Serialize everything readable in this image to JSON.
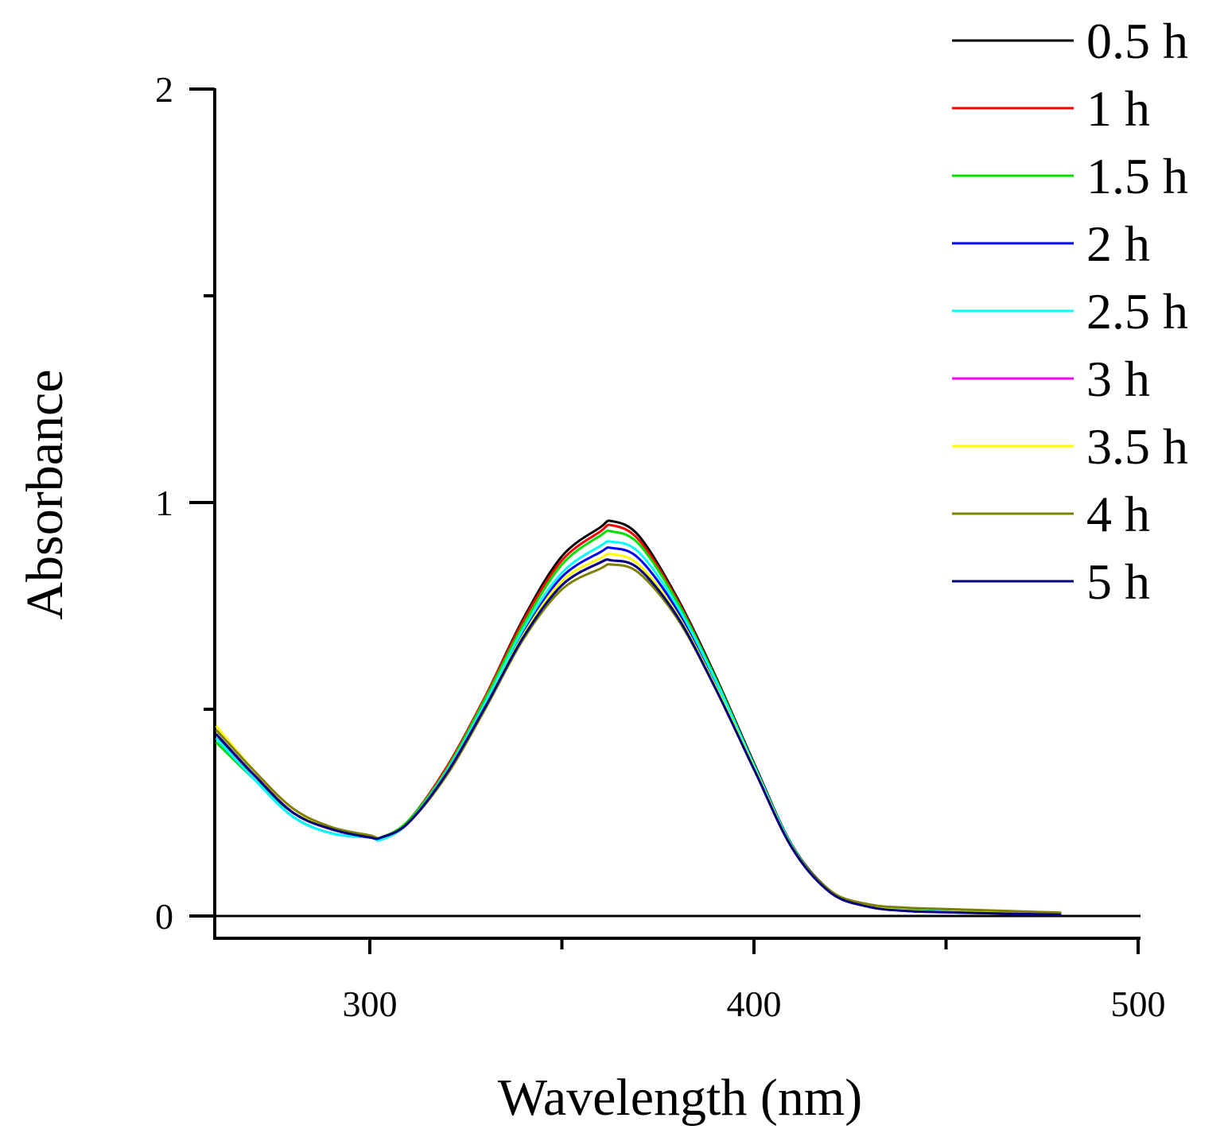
{
  "chart_data": {
    "type": "line",
    "title": "",
    "xlabel": "Wavelength (nm)",
    "ylabel": "Absorbance",
    "xlim": [
      260,
      500
    ],
    "ylim": [
      -0.05,
      2.0
    ],
    "x_major_ticks": [
      300,
      400,
      500
    ],
    "x_minor_ticks": [
      350,
      450
    ],
    "y_major_ticks": [
      0,
      1,
      2
    ],
    "y_minor_ticks": [
      0.5,
      1.5
    ],
    "grid": false,
    "legend_position": "top-right",
    "x": [
      260,
      270,
      280,
      290,
      300,
      303,
      310,
      320,
      330,
      340,
      350,
      360,
      363,
      370,
      380,
      390,
      400,
      410,
      420,
      430,
      440,
      450,
      460,
      470,
      480
    ],
    "series": [
      {
        "name": "0.5 h",
        "color": "#000000",
        "values": [
          0.43,
          0.34,
          0.25,
          0.21,
          0.19,
          0.19,
          0.23,
          0.36,
          0.53,
          0.72,
          0.87,
          0.94,
          0.955,
          0.92,
          0.77,
          0.58,
          0.37,
          0.17,
          0.06,
          0.025,
          0.015,
          0.012,
          0.01,
          0.008,
          0.005
        ]
      },
      {
        "name": "1 h",
        "color": "#ff0000",
        "values": [
          0.43,
          0.34,
          0.25,
          0.21,
          0.19,
          0.19,
          0.23,
          0.36,
          0.53,
          0.715,
          0.86,
          0.93,
          0.945,
          0.91,
          0.765,
          0.575,
          0.365,
          0.168,
          0.058,
          0.024,
          0.014,
          0.011,
          0.009,
          0.007,
          0.005
        ]
      },
      {
        "name": "1.5 h",
        "color": "#00e000",
        "values": [
          0.42,
          0.33,
          0.25,
          0.21,
          0.19,
          0.19,
          0.23,
          0.355,
          0.525,
          0.705,
          0.85,
          0.92,
          0.93,
          0.9,
          0.76,
          0.575,
          0.365,
          0.168,
          0.058,
          0.024,
          0.014,
          0.011,
          0.009,
          0.007,
          0.005
        ]
      },
      {
        "name": "2 h",
        "color": "#0000ff",
        "values": [
          0.43,
          0.33,
          0.24,
          0.2,
          0.19,
          0.185,
          0.225,
          0.35,
          0.515,
          0.69,
          0.82,
          0.88,
          0.89,
          0.865,
          0.74,
          0.56,
          0.36,
          0.165,
          0.057,
          0.023,
          0.013,
          0.01,
          0.008,
          0.006,
          0.004
        ]
      },
      {
        "name": "2.5 h",
        "color": "#00ffff",
        "values": [
          0.43,
          0.33,
          0.24,
          0.2,
          0.19,
          0.185,
          0.225,
          0.35,
          0.515,
          0.695,
          0.83,
          0.895,
          0.905,
          0.88,
          0.75,
          0.57,
          0.365,
          0.168,
          0.058,
          0.024,
          0.014,
          0.011,
          0.009,
          0.007,
          0.005
        ]
      },
      {
        "name": "3 h",
        "color": "#ff00ff",
        "values": [
          0.44,
          0.34,
          0.25,
          0.21,
          0.19,
          0.19,
          0.225,
          0.345,
          0.505,
          0.675,
          0.8,
          0.855,
          0.86,
          0.84,
          0.725,
          0.55,
          0.355,
          0.163,
          0.056,
          0.022,
          0.012,
          0.009,
          0.007,
          0.005,
          0.003
        ]
      },
      {
        "name": "3.5 h",
        "color": "#ffff00",
        "values": [
          0.46,
          0.35,
          0.26,
          0.21,
          0.195,
          0.19,
          0.225,
          0.345,
          0.505,
          0.68,
          0.81,
          0.865,
          0.875,
          0.85,
          0.73,
          0.555,
          0.358,
          0.165,
          0.057,
          0.023,
          0.013,
          0.01,
          0.008,
          0.006,
          0.004
        ]
      },
      {
        "name": "4 h",
        "color": "#808000",
        "values": [
          0.45,
          0.35,
          0.26,
          0.215,
          0.195,
          0.19,
          0.225,
          0.34,
          0.5,
          0.67,
          0.79,
          0.84,
          0.85,
          0.83,
          0.72,
          0.55,
          0.355,
          0.165,
          0.06,
          0.028,
          0.02,
          0.017,
          0.014,
          0.011,
          0.008
        ]
      },
      {
        "name": "5 h",
        "color": "#00007f",
        "values": [
          0.44,
          0.34,
          0.25,
          0.21,
          0.19,
          0.19,
          0.225,
          0.345,
          0.505,
          0.675,
          0.8,
          0.855,
          0.86,
          0.84,
          0.725,
          0.55,
          0.355,
          0.163,
          0.056,
          0.022,
          0.012,
          0.009,
          0.007,
          0.005,
          0.003
        ]
      }
    ]
  }
}
